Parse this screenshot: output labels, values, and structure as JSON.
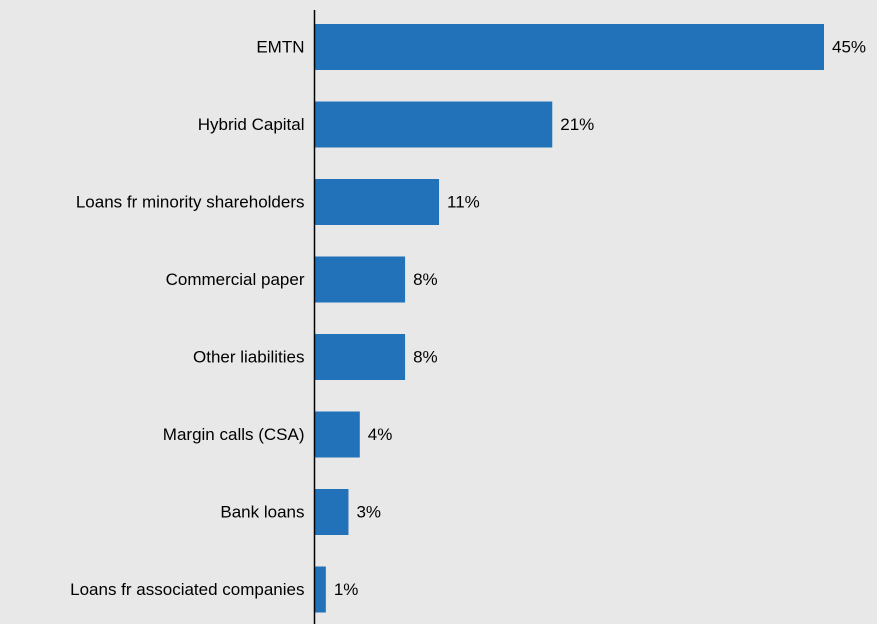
{
  "chart_data": {
    "type": "bar",
    "orientation": "horizontal",
    "categories": [
      "EMTN",
      "Hybrid Capital",
      "Loans fr minority shareholders",
      "Commercial paper",
      "Other liabilities",
      "Margin calls (CSA)",
      "Bank loans",
      "Loans fr associated companies"
    ],
    "values": [
      45,
      21,
      11,
      8,
      8,
      4,
      3,
      1
    ],
    "value_labels": [
      "45%",
      "21%",
      "11%",
      "8%",
      "8%",
      "4%",
      "3%",
      "1%"
    ],
    "xlim": [
      0,
      45
    ],
    "grid": false,
    "legend": "none",
    "bar_color": "#2272b9",
    "background_color": "#e8e8e8"
  }
}
